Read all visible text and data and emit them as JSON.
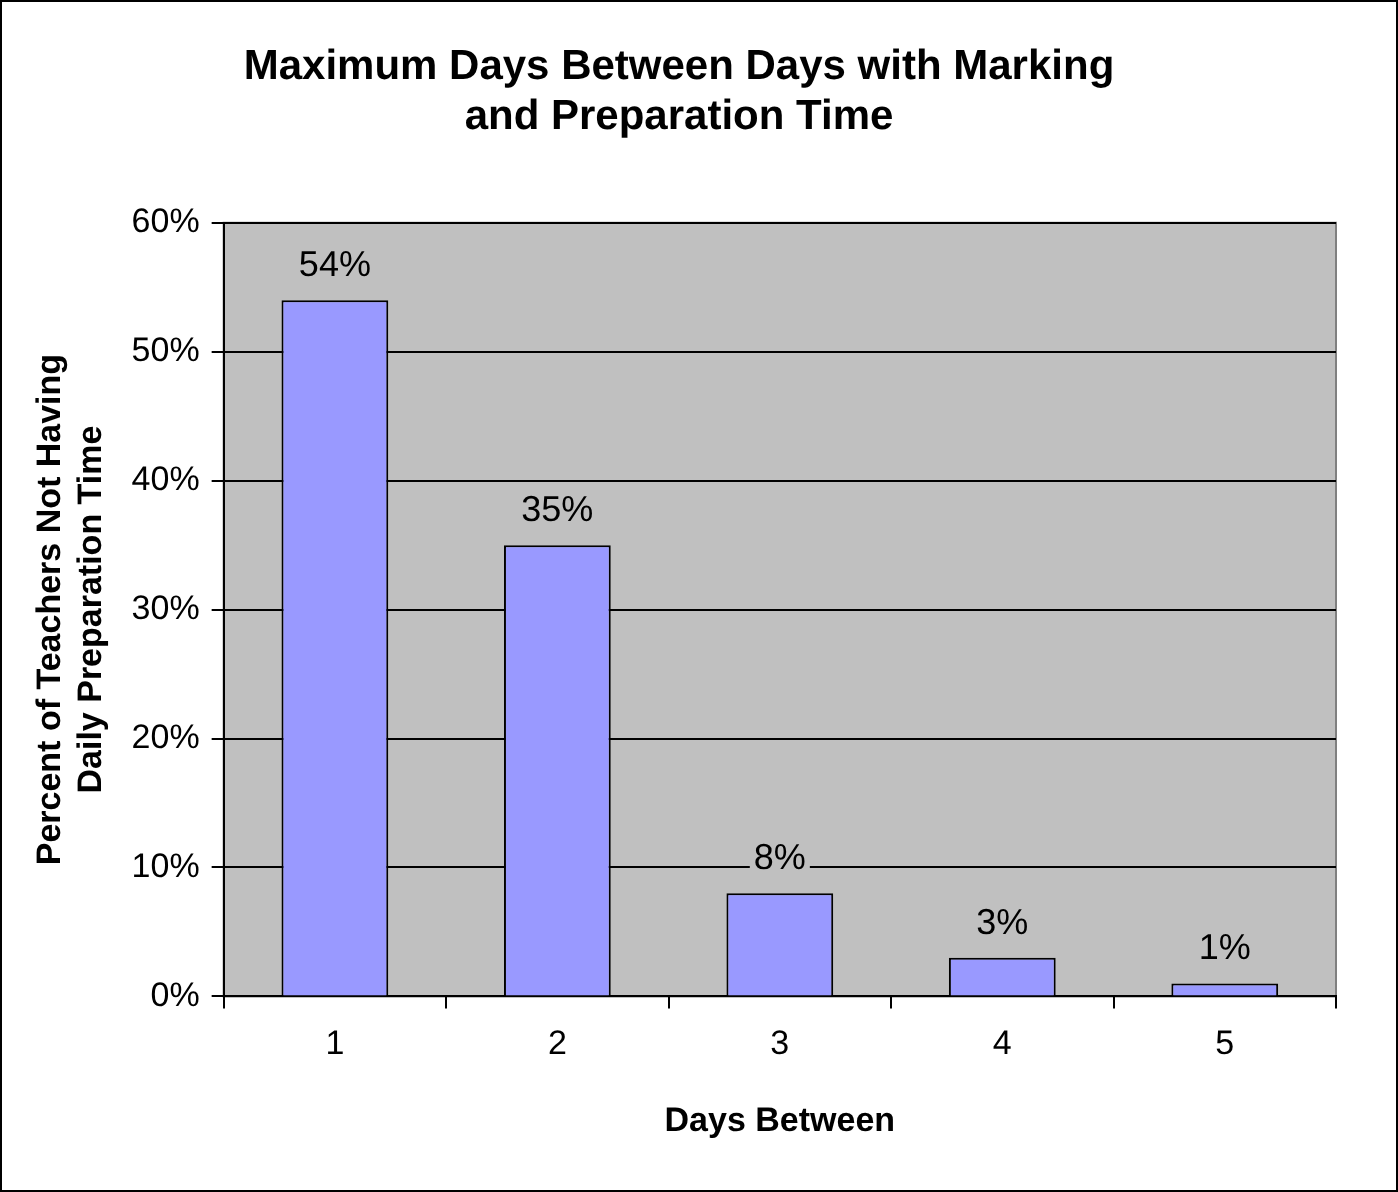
{
  "chart_data": {
    "type": "bar",
    "title": "Maximum Days Between Days with Marking\nand Preparation Time",
    "xlabel": "Days Between",
    "ylabel": "Percent of Teachers Not Having\nDaily Preparation Time",
    "categories": [
      "1",
      "2",
      "3",
      "4",
      "5"
    ],
    "values": [
      54,
      35,
      8,
      3,
      1
    ],
    "color": "#9999ff",
    "value_labels": [
      "54%",
      "35%",
      "8%",
      "3%",
      "1%"
    ],
    "ylim": [
      0,
      60
    ],
    "yticks": [
      {
        "value": 0,
        "label": "0%"
      },
      {
        "value": 10,
        "label": "10%"
      },
      {
        "value": 20,
        "label": "20%"
      },
      {
        "value": 30,
        "label": "30%"
      },
      {
        "value": 40,
        "label": "40%"
      },
      {
        "value": 50,
        "label": "50%"
      },
      {
        "value": 60,
        "label": "60%"
      }
    ],
    "grid": "y",
    "legend": false
  }
}
